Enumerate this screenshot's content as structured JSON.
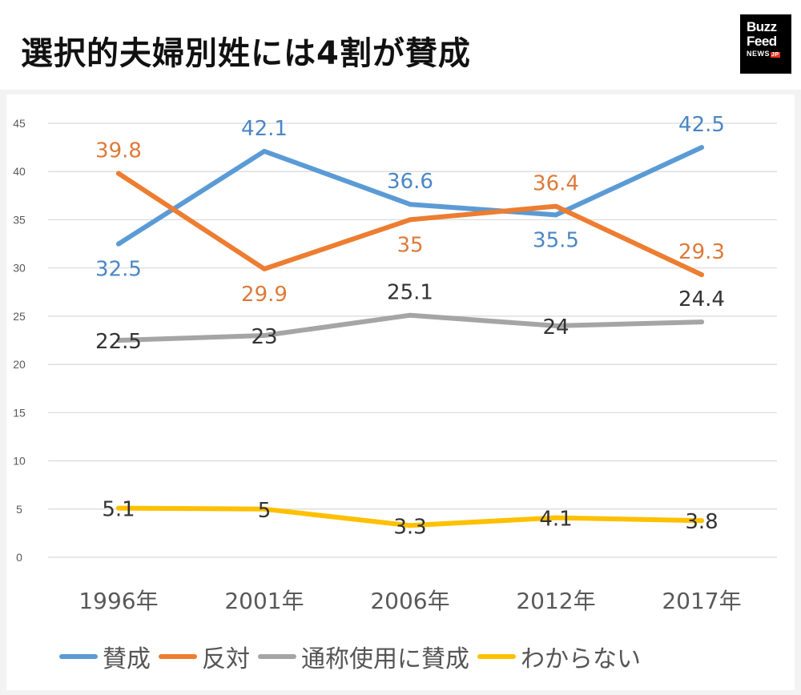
{
  "header": {
    "title": "選択的夫婦別姓には4割が賛成",
    "logo": {
      "line1": "Buzz",
      "line2": "Feed",
      "line3": "NEWS",
      "badge": "JP"
    }
  },
  "chart_data": {
    "type": "line",
    "title": "選択的夫婦別姓には4割が賛成",
    "categories": [
      "1996年",
      "2001年",
      "2006年",
      "2012年",
      "2017年"
    ],
    "ylim": [
      0,
      45
    ],
    "yticks": [
      "0",
      "5",
      "10",
      "15",
      "20",
      "25",
      "30",
      "35",
      "40",
      "45"
    ],
    "grid": true,
    "legend_position": "bottom",
    "series": [
      {
        "name": "賛成",
        "color": "#5b9bd5",
        "label_color": "#4a87c4",
        "values": [
          32.5,
          42.1,
          36.6,
          35.5,
          42.5
        ],
        "labels": [
          "32.5",
          "42.1",
          "36.6",
          "35.5",
          "42.5"
        ]
      },
      {
        "name": "反対",
        "color": "#ed7d31",
        "label_color": "#dd7a3a",
        "values": [
          39.8,
          29.9,
          35,
          36.4,
          29.3
        ],
        "labels": [
          "39.8",
          "29.9",
          "35",
          "36.4",
          "29.3"
        ]
      },
      {
        "name": "通称使用に賛成",
        "color": "#a5a5a5",
        "label_color": "#333333",
        "values": [
          22.5,
          23,
          25.1,
          24,
          24.4
        ],
        "labels": [
          "22.5",
          "23",
          "25.1",
          "24",
          "24.4"
        ]
      },
      {
        "name": "わからない",
        "color": "#ffc000",
        "label_color": "#333333",
        "values": [
          5.1,
          5,
          3.3,
          4.1,
          3.8
        ],
        "labels": [
          "5.1",
          "5",
          "3.3",
          "4.1",
          "3.8"
        ]
      }
    ]
  }
}
